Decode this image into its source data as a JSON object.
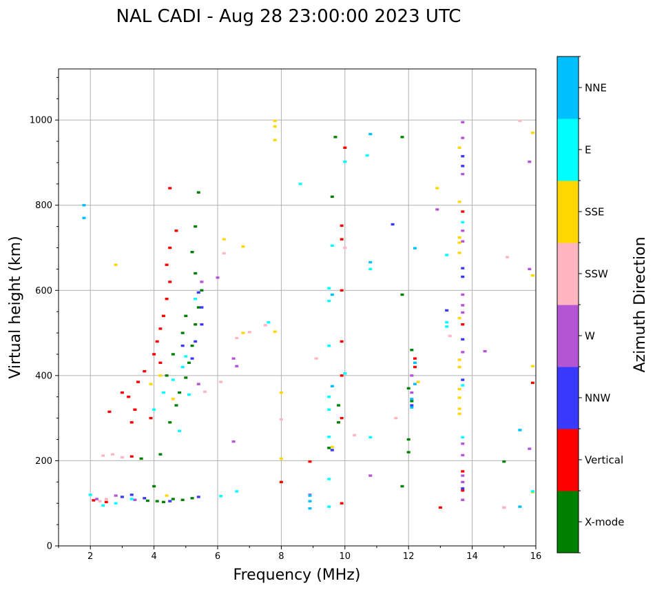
{
  "chart_data": {
    "type": "scatter",
    "title": "NAL CADI - Aug 28 23:00:00 2023 UTC",
    "xlabel": "Frequency (MHz)",
    "ylabel": "Virtual height (km)",
    "xlim": [
      1,
      16
    ],
    "ylim": [
      0,
      1120
    ],
    "xticks": [
      2,
      4,
      6,
      8,
      10,
      12,
      14,
      16
    ],
    "yticks": [
      0,
      200,
      400,
      600,
      800,
      1000
    ],
    "grid": true,
    "colorbar": {
      "label": "Azimuth Direction",
      "position": "right",
      "categories": [
        {
          "name": "X-mode",
          "color": "#008000"
        },
        {
          "name": "Vertical",
          "color": "#ff0000"
        },
        {
          "name": "NNW",
          "color": "#3a3aff"
        },
        {
          "name": "W",
          "color": "#b455d6"
        },
        {
          "name": "SSW",
          "color": "#ffb6c1"
        },
        {
          "name": "SSE",
          "color": "#ffd700"
        },
        {
          "name": "E",
          "color": "#00ffff"
        },
        {
          "name": "NNE",
          "color": "#00bfff"
        }
      ]
    },
    "series": [
      {
        "name": "X-mode",
        "points": [
          [
            4.6,
            110
          ],
          [
            4.9,
            108
          ],
          [
            5.2,
            112
          ],
          [
            4.1,
            105
          ],
          [
            4.3,
            103
          ],
          [
            3.8,
            106
          ],
          [
            4.5,
            290
          ],
          [
            4.7,
            330
          ],
          [
            4.8,
            360
          ],
          [
            5.0,
            395
          ],
          [
            5.1,
            430
          ],
          [
            5.2,
            470
          ],
          [
            5.3,
            520
          ],
          [
            5.4,
            560
          ],
          [
            5.5,
            600
          ],
          [
            5.3,
            640
          ],
          [
            5.2,
            690
          ],
          [
            5.3,
            750
          ],
          [
            5.4,
            830
          ],
          [
            4.6,
            450
          ],
          [
            4.9,
            500
          ],
          [
            5.0,
            540
          ],
          [
            4.4,
            400
          ],
          [
            3.6,
            205
          ],
          [
            4.2,
            215
          ],
          [
            4.0,
            140
          ],
          [
            9.5,
            230
          ],
          [
            9.6,
            820
          ],
          [
            9.7,
            960
          ],
          [
            9.8,
            330
          ],
          [
            9.8,
            290
          ],
          [
            12.0,
            220
          ],
          [
            12.0,
            250
          ],
          [
            12.1,
            340
          ],
          [
            12.0,
            370
          ],
          [
            12.1,
            460
          ],
          [
            11.8,
            590
          ],
          [
            11.8,
            140
          ],
          [
            11.8,
            960
          ],
          [
            15.0,
            198
          ]
        ]
      },
      {
        "name": "Vertical",
        "points": [
          [
            3.3,
            290
          ],
          [
            3.4,
            320
          ],
          [
            3.2,
            350
          ],
          [
            3.0,
            360
          ],
          [
            3.5,
            385
          ],
          [
            3.7,
            410
          ],
          [
            4.0,
            450
          ],
          [
            4.1,
            480
          ],
          [
            4.2,
            510
          ],
          [
            4.3,
            540
          ],
          [
            4.4,
            580
          ],
          [
            4.5,
            620
          ],
          [
            4.4,
            660
          ],
          [
            4.5,
            700
          ],
          [
            4.7,
            740
          ],
          [
            4.5,
            840
          ],
          [
            3.9,
            300
          ],
          [
            4.2,
            430
          ],
          [
            2.6,
            315
          ],
          [
            3.3,
            210
          ],
          [
            2.1,
            107
          ],
          [
            2.5,
            103
          ],
          [
            8.0,
            150
          ],
          [
            8.9,
            198
          ],
          [
            9.9,
            100
          ],
          [
            9.9,
            300
          ],
          [
            9.9,
            400
          ],
          [
            9.9,
            480
          ],
          [
            9.9,
            600
          ],
          [
            9.9,
            720
          ],
          [
            9.9,
            752
          ],
          [
            10.0,
            935
          ],
          [
            12.2,
            420
          ],
          [
            12.2,
            440
          ],
          [
            13.0,
            90
          ],
          [
            13.7,
            130
          ],
          [
            13.7,
            175
          ],
          [
            13.7,
            520
          ],
          [
            13.7,
            785
          ],
          [
            15.9,
            383
          ]
        ]
      },
      {
        "name": "NNW",
        "points": [
          [
            3.0,
            115
          ],
          [
            3.3,
            120
          ],
          [
            3.7,
            112
          ],
          [
            4.5,
            105
          ],
          [
            5.4,
            115
          ],
          [
            5.2,
            440
          ],
          [
            5.3,
            480
          ],
          [
            5.5,
            520
          ],
          [
            5.4,
            595
          ],
          [
            5.5,
            560
          ],
          [
            4.9,
            470
          ],
          [
            11.5,
            755
          ],
          [
            13.2,
            553
          ],
          [
            13.7,
            135
          ],
          [
            13.7,
            390
          ],
          [
            13.7,
            485
          ],
          [
            13.7,
            632
          ],
          [
            13.7,
            652
          ],
          [
            13.7,
            892
          ],
          [
            13.7,
            915
          ],
          [
            12.1,
            330
          ],
          [
            9.6,
            225
          ]
        ]
      },
      {
        "name": "W",
        "points": [
          [
            2.2,
            110
          ],
          [
            2.8,
            118
          ],
          [
            3.4,
            108
          ],
          [
            5.4,
            380
          ],
          [
            5.5,
            620
          ],
          [
            6.0,
            630
          ],
          [
            6.5,
            245
          ],
          [
            6.5,
            440
          ],
          [
            6.6,
            422
          ],
          [
            8.9,
            120
          ],
          [
            10.8,
            165
          ],
          [
            12.9,
            790
          ],
          [
            13.7,
            108
          ],
          [
            13.7,
            150
          ],
          [
            13.7,
            165
          ],
          [
            13.7,
            213
          ],
          [
            13.7,
            240
          ],
          [
            13.7,
            455
          ],
          [
            13.7,
            548
          ],
          [
            13.7,
            565
          ],
          [
            13.7,
            590
          ],
          [
            13.7,
            740
          ],
          [
            13.7,
            715
          ],
          [
            13.7,
            873
          ],
          [
            13.7,
            958
          ],
          [
            13.7,
            995
          ],
          [
            14.4,
            457
          ],
          [
            15.0,
            90
          ],
          [
            15.8,
            228
          ],
          [
            15.8,
            650
          ],
          [
            15.8,
            902
          ],
          [
            12.1,
            360
          ],
          [
            12.1,
            400
          ]
        ]
      },
      {
        "name": "SSW",
        "points": [
          [
            2.4,
            212
          ],
          [
            2.7,
            215
          ],
          [
            3.0,
            208
          ],
          [
            2.3,
            105
          ],
          [
            2.5,
            110
          ],
          [
            5.6,
            362
          ],
          [
            6.1,
            385
          ],
          [
            6.2,
            687
          ],
          [
            6.6,
            488
          ],
          [
            7.0,
            502
          ],
          [
            7.5,
            518
          ],
          [
            9.1,
            440
          ],
          [
            10.0,
            700
          ],
          [
            10.3,
            260
          ],
          [
            11.6,
            300
          ],
          [
            8.0,
            297
          ],
          [
            13.3,
            493
          ],
          [
            15.0,
            90
          ],
          [
            15.1,
            678
          ],
          [
            15.5,
            998
          ]
        ]
      },
      {
        "name": "SSE",
        "points": [
          [
            3.9,
            380
          ],
          [
            4.2,
            400
          ],
          [
            4.4,
            118
          ],
          [
            4.6,
            345
          ],
          [
            2.8,
            660
          ],
          [
            6.2,
            720
          ],
          [
            6.8,
            703
          ],
          [
            6.8,
            500
          ],
          [
            7.8,
            503
          ],
          [
            7.8,
            985
          ],
          [
            7.8,
            998
          ],
          [
            7.8,
            953
          ],
          [
            8.0,
            360
          ],
          [
            8.0,
            205
          ],
          [
            9.6,
            232
          ],
          [
            12.3,
            385
          ],
          [
            12.9,
            840
          ],
          [
            13.6,
            310
          ],
          [
            13.6,
            322
          ],
          [
            13.6,
            348
          ],
          [
            13.6,
            368
          ],
          [
            13.6,
            420
          ],
          [
            13.6,
            437
          ],
          [
            13.6,
            535
          ],
          [
            13.6,
            688
          ],
          [
            13.6,
            712
          ],
          [
            13.6,
            724
          ],
          [
            13.6,
            808
          ],
          [
            13.6,
            935
          ],
          [
            15.9,
            422
          ],
          [
            15.9,
            635
          ],
          [
            15.9,
            970
          ],
          [
            15.9,
            126
          ]
        ]
      },
      {
        "name": "E",
        "points": [
          [
            2.0,
            120
          ],
          [
            2.4,
            95
          ],
          [
            2.8,
            100
          ],
          [
            3.3,
            110
          ],
          [
            4.0,
            320
          ],
          [
            4.3,
            360
          ],
          [
            4.6,
            390
          ],
          [
            4.9,
            420
          ],
          [
            5.0,
            445
          ],
          [
            5.1,
            355
          ],
          [
            5.3,
            580
          ],
          [
            4.8,
            270
          ],
          [
            6.1,
            117
          ],
          [
            6.6,
            128
          ],
          [
            7.6,
            525
          ],
          [
            8.6,
            850
          ],
          [
            9.5,
            92
          ],
          [
            9.5,
            157
          ],
          [
            9.5,
            320
          ],
          [
            9.5,
            350
          ],
          [
            9.5,
            470
          ],
          [
            9.5,
            575
          ],
          [
            9.5,
            605
          ],
          [
            9.5,
            256
          ],
          [
            9.6,
            705
          ],
          [
            10.0,
            405
          ],
          [
            10.0,
            902
          ],
          [
            10.7,
            917
          ],
          [
            10.8,
            255
          ],
          [
            10.8,
            650
          ],
          [
            13.2,
            515
          ],
          [
            13.2,
            525
          ],
          [
            13.2,
            683
          ],
          [
            13.7,
            255
          ],
          [
            13.7,
            377
          ],
          [
            13.7,
            760
          ],
          [
            15.5,
            272
          ],
          [
            15.9,
            128
          ]
        ]
      },
      {
        "name": "NNE",
        "points": [
          [
            1.8,
            800
          ],
          [
            1.8,
            770
          ],
          [
            8.9,
            88
          ],
          [
            8.9,
            105
          ],
          [
            8.9,
            118
          ],
          [
            10.8,
            666
          ],
          [
            10.8,
            967
          ],
          [
            12.1,
            325
          ],
          [
            12.1,
            345
          ],
          [
            12.2,
            380
          ],
          [
            12.2,
            430
          ],
          [
            12.2,
            699
          ],
          [
            15.5,
            272
          ],
          [
            15.5,
            92
          ],
          [
            9.6,
            375
          ],
          [
            9.6,
            590
          ]
        ]
      }
    ]
  }
}
